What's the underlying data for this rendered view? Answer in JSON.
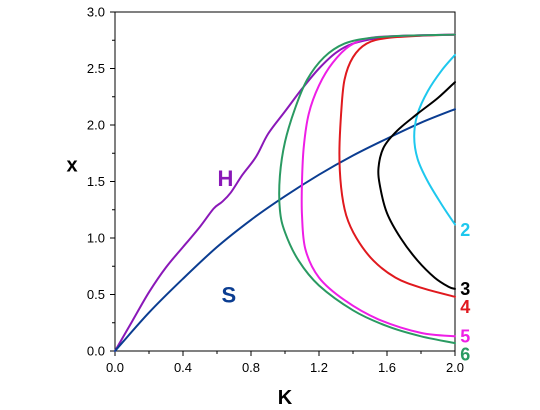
{
  "chart_data": {
    "type": "line",
    "title": "",
    "xlabel": "K",
    "ylabel": "x",
    "xlim": [
      0.0,
      2.0
    ],
    "ylim": [
      0.0,
      3.0
    ],
    "x_ticks": [
      "0.0",
      "0.4",
      "0.8",
      "1.2",
      "1.6",
      "2.0"
    ],
    "y_ticks": [
      "0.0",
      "0.5",
      "1.0",
      "1.5",
      "2.0",
      "2.5",
      "3.0"
    ],
    "grid": false,
    "series": [
      {
        "name": "H",
        "color": "#8a18b8",
        "points": [
          [
            0.0,
            0.0
          ],
          [
            0.1,
            0.26
          ],
          [
            0.2,
            0.52
          ],
          [
            0.3,
            0.74
          ],
          [
            0.4,
            0.92
          ],
          [
            0.5,
            1.1
          ],
          [
            0.58,
            1.26
          ],
          [
            0.63,
            1.32
          ],
          [
            0.68,
            1.4
          ],
          [
            0.75,
            1.56
          ],
          [
            0.83,
            1.72
          ],
          [
            0.9,
            1.92
          ],
          [
            1.0,
            2.12
          ],
          [
            1.1,
            2.32
          ],
          [
            1.2,
            2.5
          ],
          [
            1.3,
            2.64
          ],
          [
            1.4,
            2.72
          ],
          [
            1.55,
            2.77
          ],
          [
            1.7,
            2.79
          ],
          [
            2.0,
            2.8
          ]
        ]
      },
      {
        "name": "S",
        "color": "#0b3d91",
        "points": [
          [
            0.0,
            0.0
          ],
          [
            0.2,
            0.34
          ],
          [
            0.4,
            0.64
          ],
          [
            0.6,
            0.92
          ],
          [
            0.8,
            1.16
          ],
          [
            1.0,
            1.37
          ],
          [
            1.2,
            1.56
          ],
          [
            1.4,
            1.73
          ],
          [
            1.6,
            1.88
          ],
          [
            1.8,
            2.02
          ],
          [
            2.0,
            2.14
          ]
        ]
      },
      {
        "name": "2",
        "color": "#1ec8ee",
        "points": [
          [
            2.0,
            2.62
          ],
          [
            1.92,
            2.48
          ],
          [
            1.84,
            2.3
          ],
          [
            1.78,
            2.1
          ],
          [
            1.76,
            1.9
          ],
          [
            1.78,
            1.7
          ],
          [
            1.84,
            1.5
          ],
          [
            1.92,
            1.3
          ],
          [
            2.0,
            1.12
          ]
        ]
      },
      {
        "name": "3",
        "color": "#000000",
        "points": [
          [
            2.0,
            2.38
          ],
          [
            1.9,
            2.24
          ],
          [
            1.78,
            2.1
          ],
          [
            1.66,
            1.95
          ],
          [
            1.58,
            1.8
          ],
          [
            1.55,
            1.62
          ],
          [
            1.56,
            1.45
          ],
          [
            1.6,
            1.22
          ],
          [
            1.68,
            1.0
          ],
          [
            1.78,
            0.8
          ],
          [
            1.88,
            0.65
          ],
          [
            1.96,
            0.57
          ],
          [
            2.0,
            0.55
          ]
        ]
      },
      {
        "name": "4",
        "color": "#e0191e",
        "points": [
          [
            2.0,
            2.8
          ],
          [
            1.8,
            2.79
          ],
          [
            1.6,
            2.77
          ],
          [
            1.48,
            2.72
          ],
          [
            1.4,
            2.6
          ],
          [
            1.35,
            2.4
          ],
          [
            1.33,
            2.1
          ],
          [
            1.32,
            1.75
          ],
          [
            1.33,
            1.45
          ],
          [
            1.36,
            1.2
          ],
          [
            1.42,
            1.0
          ],
          [
            1.52,
            0.8
          ],
          [
            1.65,
            0.65
          ],
          [
            1.8,
            0.56
          ],
          [
            2.0,
            0.48
          ]
        ]
      },
      {
        "name": "5",
        "color": "#ee1ee6",
        "points": [
          [
            2.0,
            2.8
          ],
          [
            1.7,
            2.79
          ],
          [
            1.5,
            2.77
          ],
          [
            1.38,
            2.7
          ],
          [
            1.28,
            2.55
          ],
          [
            1.2,
            2.35
          ],
          [
            1.14,
            2.1
          ],
          [
            1.11,
            1.8
          ],
          [
            1.1,
            1.5
          ],
          [
            1.1,
            1.2
          ],
          [
            1.12,
            0.9
          ],
          [
            1.2,
            0.65
          ],
          [
            1.35,
            0.45
          ],
          [
            1.55,
            0.28
          ],
          [
            1.8,
            0.16
          ],
          [
            2.0,
            0.13
          ]
        ]
      },
      {
        "name": "6",
        "color": "#2a9a62",
        "points": [
          [
            2.0,
            2.8
          ],
          [
            1.7,
            2.79
          ],
          [
            1.5,
            2.77
          ],
          [
            1.35,
            2.72
          ],
          [
            1.23,
            2.6
          ],
          [
            1.13,
            2.4
          ],
          [
            1.06,
            2.15
          ],
          [
            1.0,
            1.85
          ],
          [
            0.97,
            1.55
          ],
          [
            0.97,
            1.25
          ],
          [
            1.0,
            1.05
          ],
          [
            1.08,
            0.8
          ],
          [
            1.2,
            0.58
          ],
          [
            1.4,
            0.36
          ],
          [
            1.6,
            0.22
          ],
          [
            1.8,
            0.13
          ],
          [
            2.0,
            0.07
          ]
        ]
      }
    ],
    "labels": [
      {
        "text": "H",
        "color": "#8a18b8",
        "x": 0.65,
        "y": 1.53
      },
      {
        "text": "S",
        "color": "#0b3d91",
        "x": 0.67,
        "y": 0.5
      },
      {
        "text": "2",
        "color": "#1ec8ee",
        "x": 2.06,
        "y": 1.07
      },
      {
        "text": "3",
        "color": "#000000",
        "x": 2.06,
        "y": 0.55
      },
      {
        "text": "4",
        "color": "#e0191e",
        "x": 2.06,
        "y": 0.39
      },
      {
        "text": "5",
        "color": "#ee1ee6",
        "x": 2.06,
        "y": 0.13
      },
      {
        "text": "6",
        "color": "#2a9a62",
        "x": 2.06,
        "y": -0.03
      }
    ]
  }
}
